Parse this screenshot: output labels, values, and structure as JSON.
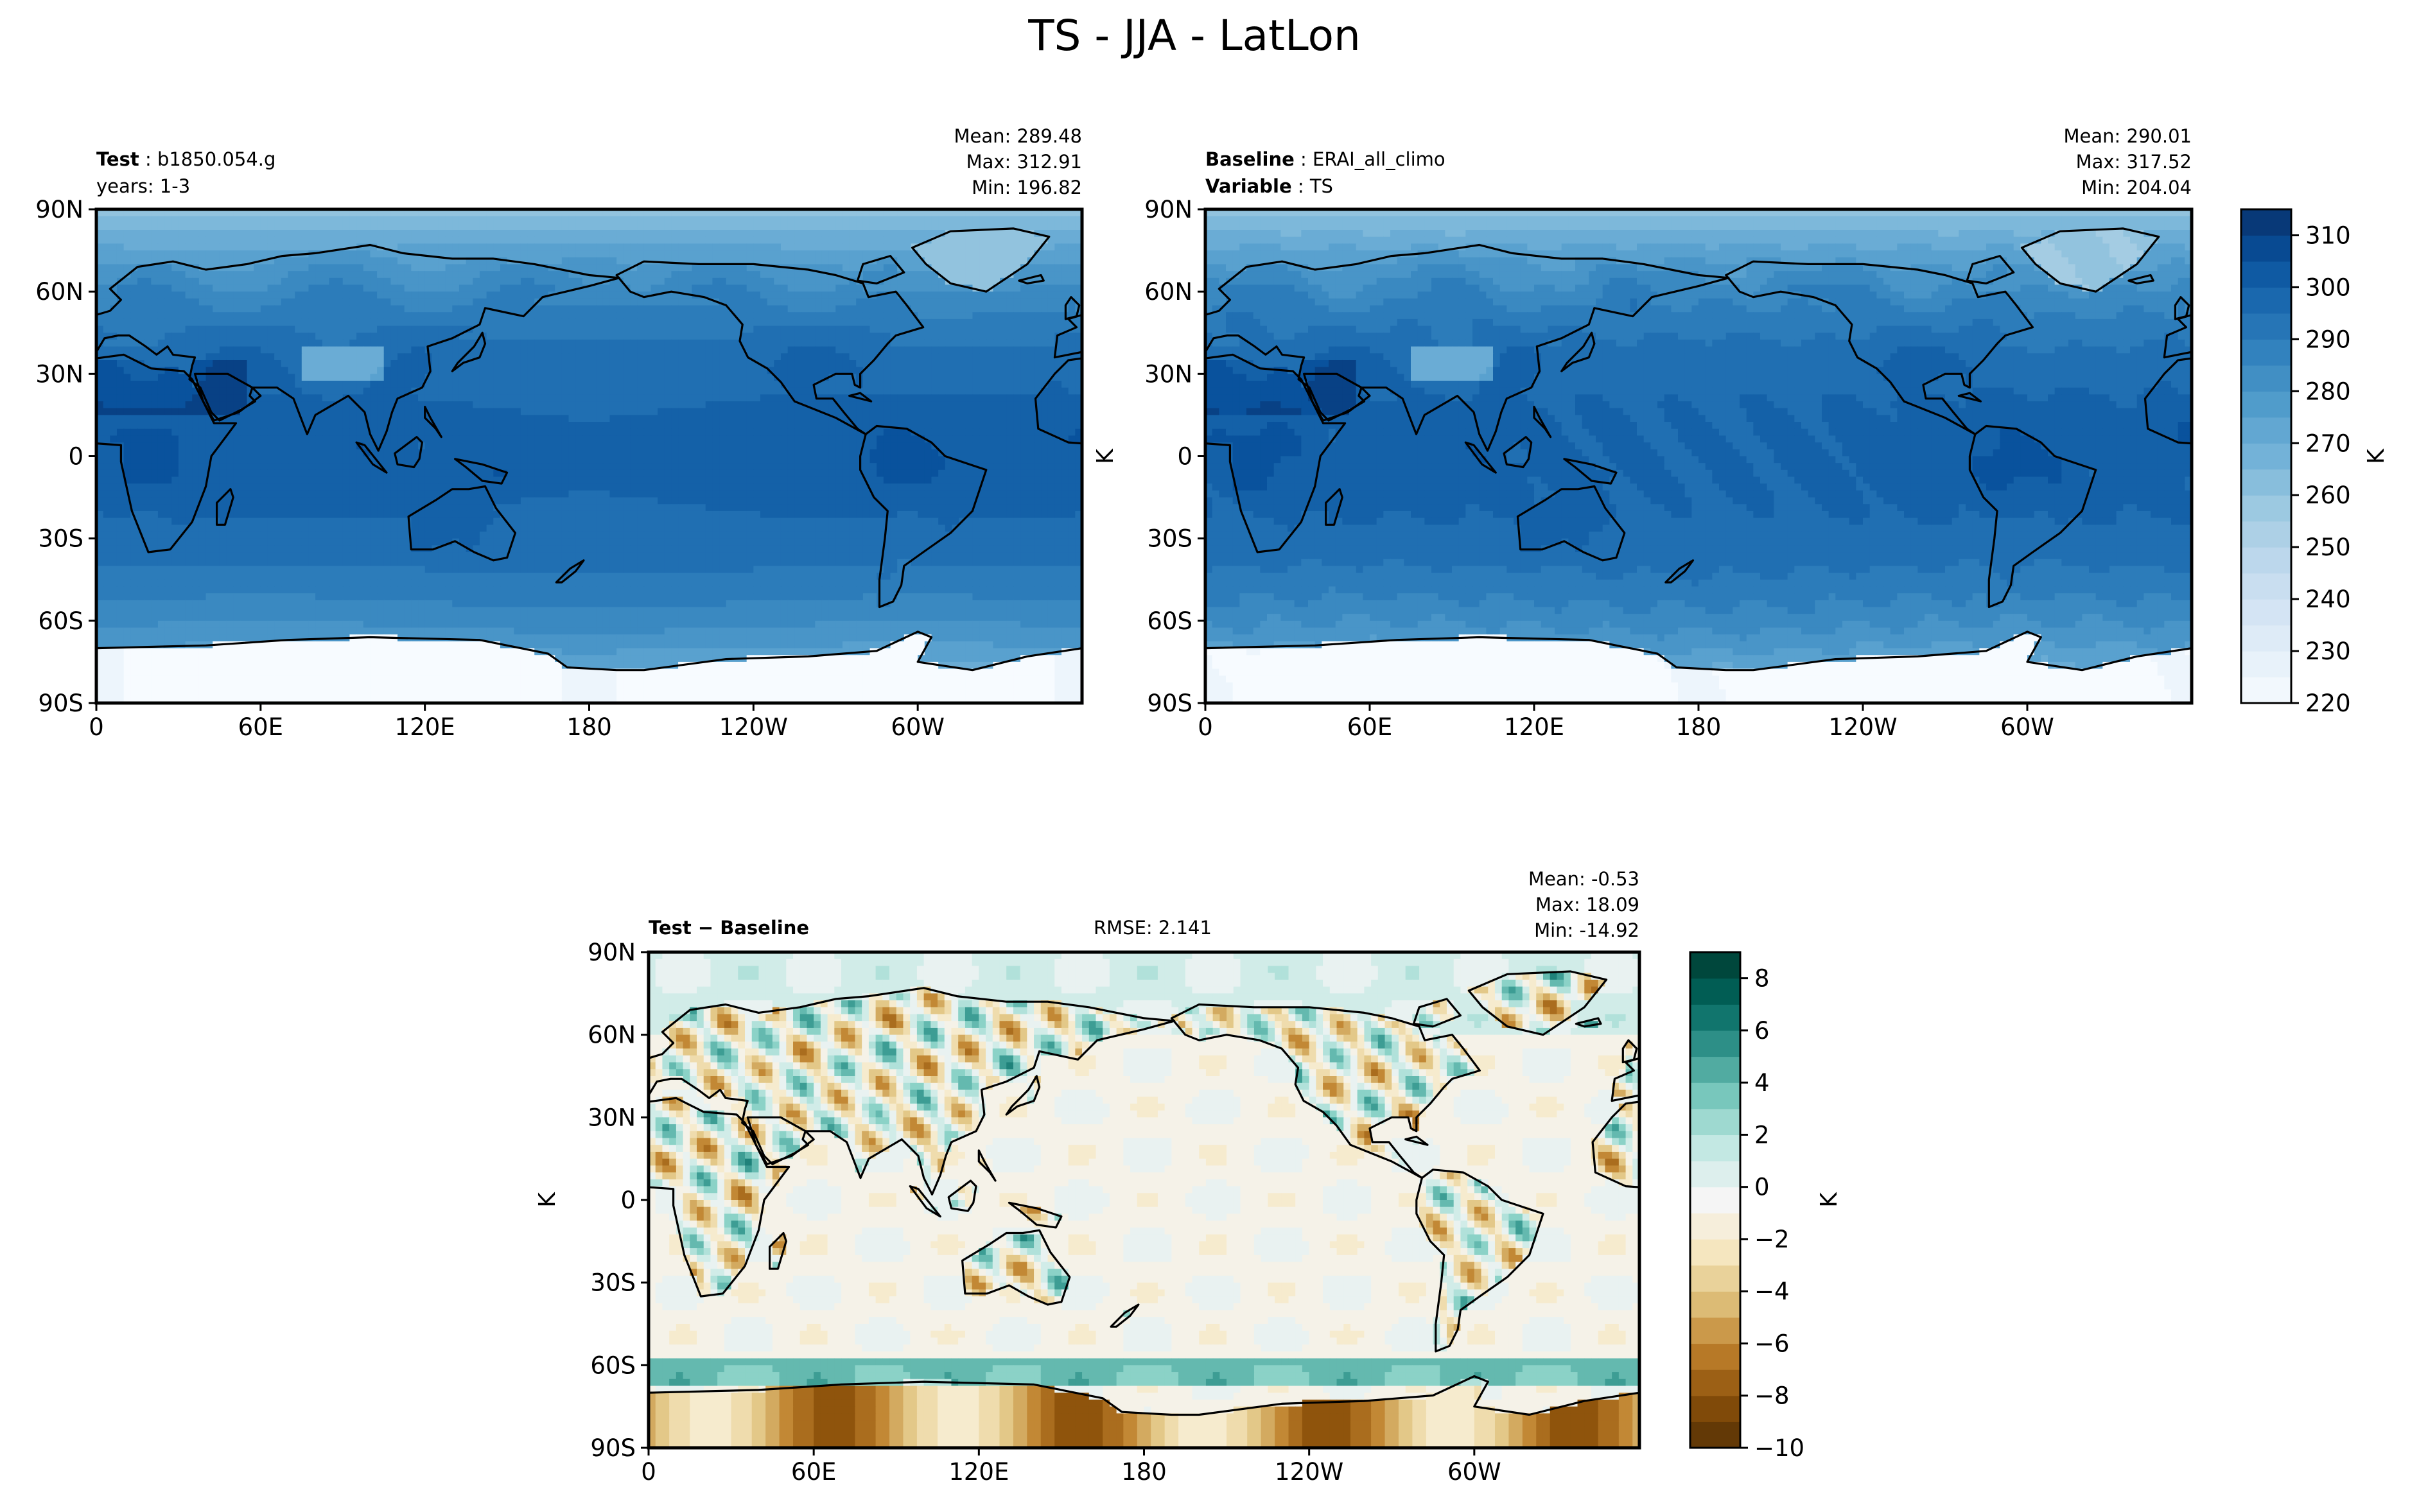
{
  "figure": {
    "title": "TS - JJA - LatLon"
  },
  "palettes": {
    "blues": [
      "#f7fbff",
      "#e4eff9",
      "#d1e2f3",
      "#bad6eb",
      "#9ac8e0",
      "#73b2d8",
      "#529dcc",
      "#3585bf",
      "#1d6cb1",
      "#08519c",
      "#08306b"
    ],
    "brbg": [
      "#543005",
      "#8c510a",
      "#bf812d",
      "#dfc27d",
      "#f6e8c3",
      "#f5f5f5",
      "#c7eae5",
      "#80cdc1",
      "#35978f",
      "#01665e",
      "#003c30"
    ],
    "outline": "#000000"
  },
  "chart_data": [
    {
      "type": "heatmap",
      "id": "test",
      "label_bold": "Test",
      "label_value": "b1850.054.g",
      "line2": "years: 1-3",
      "stats": [
        "Mean: 289.48",
        "Max: 312.91",
        "Min: 196.82"
      ],
      "xticks": [
        "0",
        "60E",
        "120E",
        "180",
        "120W",
        "60W"
      ],
      "yticks": [
        "90N",
        "60N",
        "30N",
        "0",
        "30S",
        "60S",
        "90S"
      ],
      "xlim": [
        0,
        360
      ],
      "ylim": [
        -90,
        90
      ],
      "field": "TS",
      "units": "K",
      "scale": [
        220,
        315
      ]
    },
    {
      "type": "heatmap",
      "id": "baseline",
      "label_bold": "Baseline",
      "label_value": "ERAI_all_climo",
      "line2_bold": "Variable",
      "line2_value": "TS",
      "stats": [
        "Mean: 290.01",
        "Max: 317.52",
        "Min: 204.04"
      ],
      "xticks": [
        "0",
        "60E",
        "120E",
        "180",
        "120W",
        "60W"
      ],
      "yticks": [
        "90N",
        "60N",
        "30N",
        "0",
        "30S",
        "60S",
        "90S"
      ],
      "xlim": [
        0,
        360
      ],
      "ylim": [
        -90,
        90
      ],
      "ylabel": "K",
      "units": "K",
      "colorbar": {
        "label": "K",
        "range": [
          220,
          315
        ],
        "ticks": [
          "310",
          "300",
          "290",
          "280",
          "270",
          "260",
          "250",
          "240",
          "230",
          "220"
        ]
      }
    },
    {
      "type": "heatmap",
      "id": "diff",
      "label_bold": "Test − Baseline",
      "rmse": "RMSE: 2.141",
      "stats": [
        "Mean: -0.53",
        "Max: 18.09",
        "Min: -14.92"
      ],
      "xticks": [
        "0",
        "60E",
        "120E",
        "180",
        "120W",
        "60W"
      ],
      "yticks": [
        "90N",
        "60N",
        "30N",
        "0",
        "30S",
        "60S",
        "90S"
      ],
      "xlim": [
        0,
        360
      ],
      "ylim": [
        -90,
        90
      ],
      "ylabel": "K",
      "units": "K",
      "colorbar": {
        "label": "K",
        "range": [
          -10,
          9
        ],
        "ticks": [
          "8",
          "6",
          "4",
          "2",
          "0",
          "−2",
          "−4",
          "−6",
          "−8",
          "−10"
        ]
      }
    }
  ]
}
